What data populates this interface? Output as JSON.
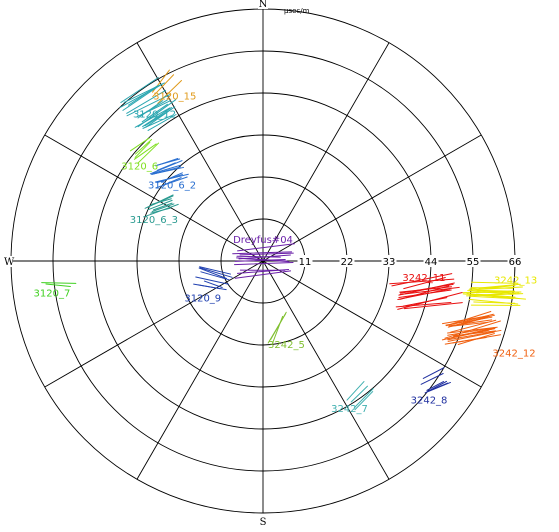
{
  "chart_data": {
    "type": "polar-segments",
    "title": "",
    "units_label": "μsec/m",
    "cardinals": [
      "N",
      "W",
      "S"
    ],
    "ring_labels": [
      "11",
      "22",
      "33",
      "44",
      "55",
      "66"
    ],
    "r_max": 66,
    "spoke_every_deg": 30,
    "grid": true,
    "clusters": [
      {
        "name": "Dreyfus#04",
        "color": "#6a1fa8",
        "az_deg": 90,
        "r": 0,
        "dir_deg": 92,
        "count": 12,
        "len": 12,
        "spread": 5
      },
      {
        "name": "3120_15",
        "color": "#e09a1a",
        "az_deg": 331,
        "r": 52,
        "dir_deg": 140,
        "count": 3,
        "len": 7,
        "spread": 5
      },
      {
        "name": "3120_12",
        "color": "#2aa6b0",
        "az_deg": 324,
        "r": 51,
        "dir_deg": 120,
        "count": 18,
        "len": 10,
        "spread": 7
      },
      {
        "name": "3120_6",
        "color": "#7fe020",
        "az_deg": 313,
        "r": 42,
        "dir_deg": 130,
        "count": 5,
        "len": 6,
        "spread": 4
      },
      {
        "name": "3120_6_2",
        "color": "#2a6fd0",
        "az_deg": 313,
        "r": 34,
        "dir_deg": 108,
        "count": 12,
        "len": 7,
        "spread": 4
      },
      {
        "name": "3120_6_3",
        "color": "#2a9a90",
        "az_deg": 298,
        "r": 30,
        "dir_deg": 110,
        "count": 8,
        "len": 7,
        "spread": 3
      },
      {
        "name": "3120_7",
        "color": "#3fd020",
        "az_deg": 264,
        "r": 54,
        "dir_deg": 90,
        "count": 2,
        "len": 7,
        "spread": 1
      },
      {
        "name": "3120_9",
        "color": "#2040b0",
        "az_deg": 250,
        "r": 14,
        "dir_deg": 75,
        "count": 8,
        "len": 7,
        "spread": 3
      },
      {
        "name": "3242_5",
        "color": "#80c030",
        "az_deg": 167,
        "r": 18,
        "dir_deg": 155,
        "count": 3,
        "len": 7,
        "spread": 3
      },
      {
        "name": "3242_7",
        "color": "#40b0b0",
        "az_deg": 144,
        "r": 43,
        "dir_deg": 140,
        "count": 4,
        "len": 7,
        "spread": 3
      },
      {
        "name": "3242_8",
        "color": "#2030a0",
        "az_deg": 125,
        "r": 55,
        "dir_deg": 118,
        "count": 6,
        "len": 7,
        "spread": 3
      },
      {
        "name": "3242_11",
        "color": "#e81010",
        "az_deg": 101,
        "r": 44,
        "dir_deg": 100,
        "count": 14,
        "len": 14,
        "spread": 5
      },
      {
        "name": "3242_12",
        "color": "#f06010",
        "az_deg": 108,
        "r": 57,
        "dir_deg": 102,
        "count": 24,
        "len": 12,
        "spread": 4
      },
      {
        "name": "3242_13",
        "color": "#e8e800",
        "az_deg": 98,
        "r": 61,
        "dir_deg": 90,
        "count": 20,
        "len": 12,
        "spread": 4
      }
    ]
  }
}
